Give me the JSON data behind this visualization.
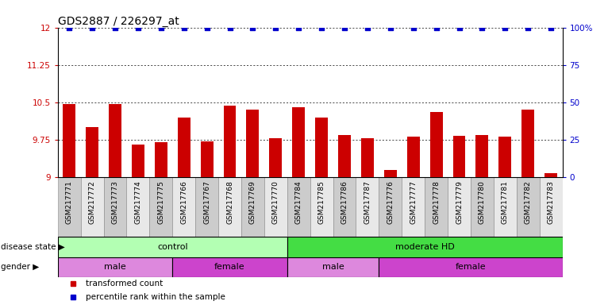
{
  "title": "GDS2887 / 226297_at",
  "samples": [
    "GSM217771",
    "GSM217772",
    "GSM217773",
    "GSM217774",
    "GSM217775",
    "GSM217766",
    "GSM217767",
    "GSM217768",
    "GSM217769",
    "GSM217770",
    "GSM217784",
    "GSM217785",
    "GSM217786",
    "GSM217787",
    "GSM217776",
    "GSM217777",
    "GSM217778",
    "GSM217779",
    "GSM217780",
    "GSM217781",
    "GSM217782",
    "GSM217783"
  ],
  "transformed_count": [
    10.47,
    10.0,
    10.46,
    9.65,
    9.7,
    10.2,
    9.72,
    10.43,
    10.35,
    9.78,
    10.4,
    10.2,
    9.85,
    9.78,
    9.15,
    9.82,
    10.3,
    9.83,
    9.85,
    9.82,
    10.35,
    9.08
  ],
  "percentile_rank": [
    100,
    100,
    100,
    100,
    100,
    100,
    100,
    100,
    100,
    100,
    100,
    100,
    100,
    100,
    100,
    100,
    100,
    100,
    100,
    100,
    100,
    100
  ],
  "ylim_left": [
    9,
    12
  ],
  "ylim_right": [
    0,
    100
  ],
  "yticks_left": [
    9,
    9.75,
    10.5,
    11.25,
    12
  ],
  "yticks_right": [
    0,
    25,
    50,
    75,
    100
  ],
  "bar_color": "#cc0000",
  "dot_color": "#0000cc",
  "bg_color": "#ffffff",
  "disease_state_groups": [
    {
      "label": "control",
      "start": 0,
      "end": 10,
      "color": "#b3ffb3"
    },
    {
      "label": "moderate HD",
      "start": 10,
      "end": 22,
      "color": "#44dd44"
    }
  ],
  "gender_groups": [
    {
      "label": "male",
      "start": 0,
      "end": 5,
      "color": "#dd88dd"
    },
    {
      "label": "female",
      "start": 5,
      "end": 10,
      "color": "#cc44cc"
    },
    {
      "label": "male",
      "start": 10,
      "end": 14,
      "color": "#dd88dd"
    },
    {
      "label": "female",
      "start": 14,
      "end": 22,
      "color": "#cc44cc"
    }
  ],
  "legend_items": [
    {
      "label": "transformed count",
      "color": "#cc0000"
    },
    {
      "label": "percentile rank within the sample",
      "color": "#0000cc"
    }
  ],
  "tick_bg_colors": [
    "#cccccc",
    "#e8e8e8"
  ],
  "title_fontsize": 10,
  "tick_fontsize": 6.5,
  "label_fontsize": 8,
  "bar_width": 0.55,
  "dot_size": 18
}
